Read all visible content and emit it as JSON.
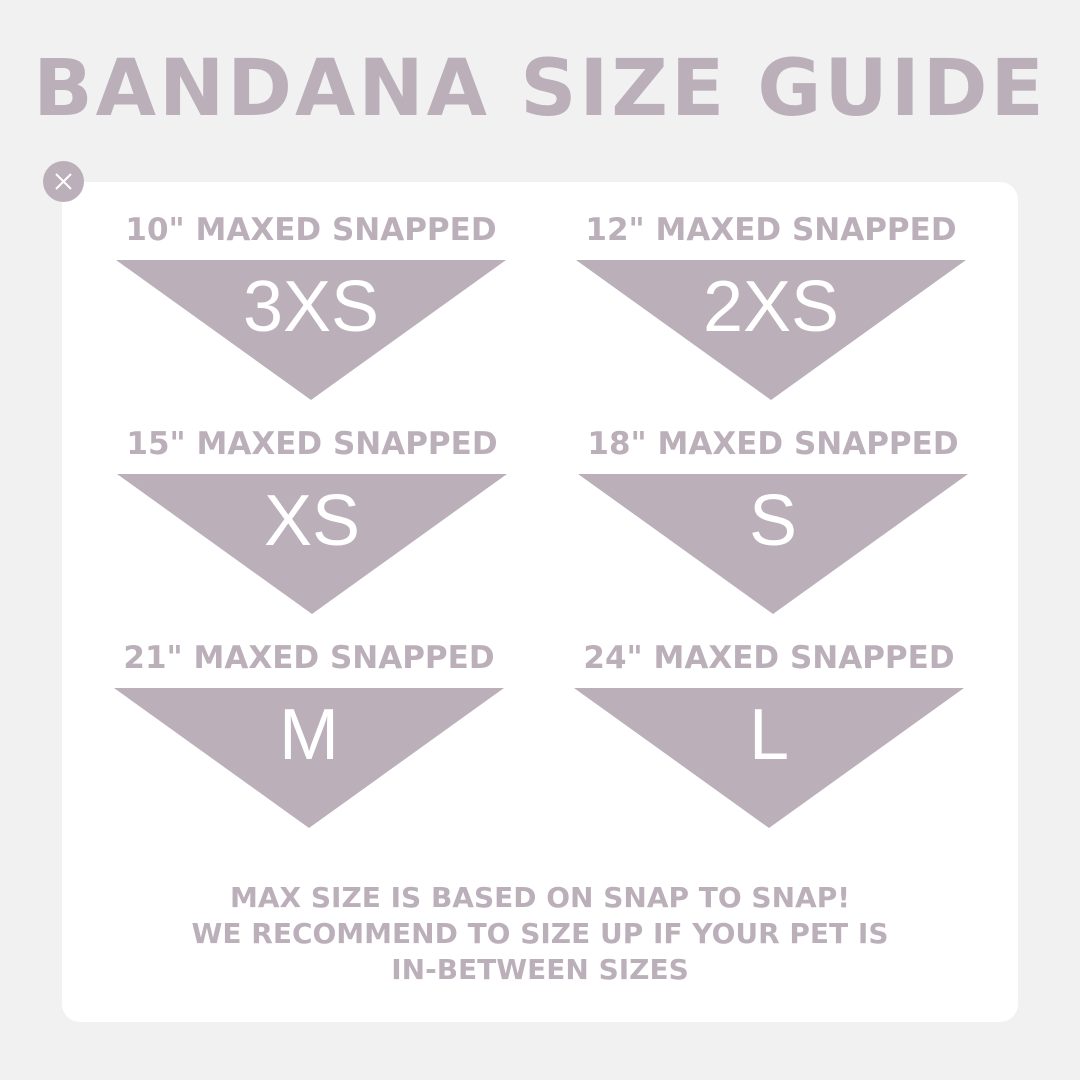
{
  "title": "BANDANA SIZE GUIDE",
  "close_icon": "close-icon",
  "accent_color": "#bbafba",
  "sizes": [
    {
      "label": "10\" MAXED SNAPPED",
      "size": "3XS"
    },
    {
      "label": "12\" MAXED SNAPPED",
      "size": "2XS"
    },
    {
      "label": "15\" MAXED SNAPPED",
      "size": "XS"
    },
    {
      "label": "18\" MAXED SNAPPED",
      "size": "S"
    },
    {
      "label": "21\" MAXED SNAPPED",
      "size": "M"
    },
    {
      "label": "24\" MAXED SNAPPED",
      "size": "L"
    }
  ],
  "note": [
    "MAX SIZE IS BASED ON SNAP TO SNAP!",
    "WE RECOMMEND TO SIZE UP IF YOUR PET IS",
    "IN-BETWEEN SIZES"
  ]
}
